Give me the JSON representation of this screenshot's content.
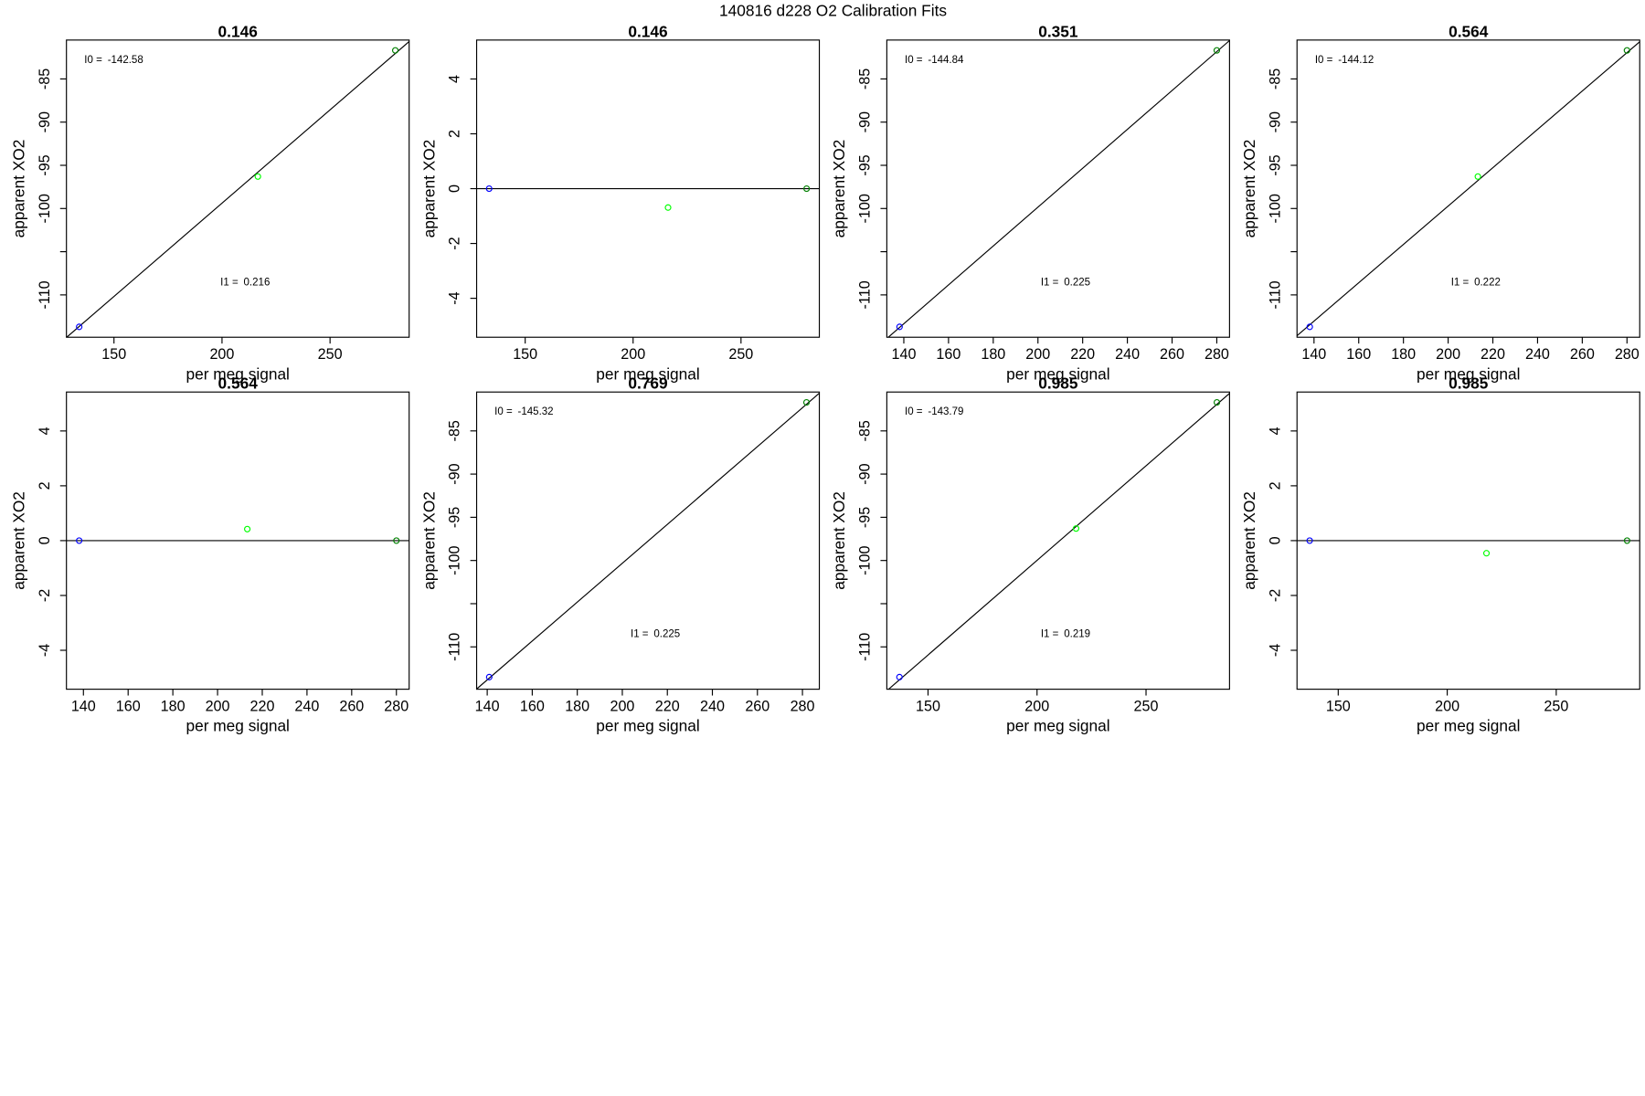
{
  "title": "140816   d228   O2 Calibration Fits",
  "chart_data": [
    {
      "type": "scatter",
      "title": "0.146",
      "xlabel": "per meg signal",
      "ylabel": "apparent XO2",
      "xlim": [
        128.0,
        286.6
      ],
      "ylim": [
        -114.9,
        -80.5
      ],
      "xticks": [
        150,
        200,
        250
      ],
      "yticks": [
        -110,
        {
          "value": -105,
          "label": null
        },
        -100,
        -95,
        -90,
        -85
      ],
      "x": [
        133.9,
        216.6,
        280.2
      ],
      "y": [
        -113.7,
        -96.3,
        -81.7
      ],
      "colors": [
        "#0000ff",
        "#00ff00",
        "#008000"
      ],
      "intercept": {
        "label": "I0 =",
        "value": -142.58
      },
      "slope": {
        "label": "I1 =",
        "value": 0.216
      }
    },
    {
      "type": "scatter",
      "title": "0.146",
      "xlabel": "per meg signal",
      "ylabel": "apparent XO2",
      "xlim": [
        127.5,
        286.3
      ],
      "ylim": [
        -5.42,
        5.42
      ],
      "xticks": [
        150,
        200,
        250
      ],
      "yticks": [
        -4,
        -2,
        0,
        2,
        4
      ],
      "x": [
        133.3,
        216.2,
        280.4
      ],
      "y": [
        0,
        -0.69,
        0
      ],
      "colors": [
        "#0000ff",
        "#00ff00",
        "#008000"
      ],
      "hline": 0
    },
    {
      "type": "scatter",
      "title": "0.351",
      "xlabel": "per meg signal",
      "ylabel": "apparent XO2",
      "xlim": [
        132.4,
        285.7
      ],
      "ylim": [
        -114.9,
        -80.5
      ],
      "xticks": [
        140,
        160,
        180,
        200,
        220,
        240,
        260,
        280
      ],
      "yticks": [
        -110,
        {
          "value": -105,
          "label": null
        },
        -100,
        -95,
        -90,
        -85
      ],
      "x": [
        138.1,
        280.0
      ],
      "y": [
        -113.7,
        -81.7
      ],
      "colors": [
        "#0000ff",
        "#008000"
      ],
      "intercept": {
        "label": "I0 =",
        "value": -144.84
      },
      "slope": {
        "label": "I1 =",
        "value": 0.225
      }
    },
    {
      "type": "scatter",
      "title": "0.564",
      "xlabel": "per meg signal",
      "ylabel": "apparent XO2",
      "xlim": [
        132.4,
        285.7
      ],
      "ylim": [
        -114.9,
        -80.5
      ],
      "xticks": [
        140,
        160,
        180,
        200,
        220,
        240,
        260,
        280
      ],
      "yticks": [
        -110,
        {
          "value": -105,
          "label": null
        },
        -100,
        -95,
        -90,
        -85
      ],
      "x": [
        138.1,
        213.3,
        280.0
      ],
      "y": [
        -113.7,
        -96.3,
        -81.7
      ],
      "colors": [
        "#0000ff",
        "#00ff00",
        "#008000"
      ],
      "intercept": {
        "label": "I0 =",
        "value": -144.12
      },
      "slope": {
        "label": "I1 =",
        "value": 0.222
      }
    },
    {
      "type": "scatter",
      "title": "0.564",
      "xlabel": "per meg signal",
      "ylabel": "apparent XO2",
      "xlim": [
        132.4,
        285.7
      ],
      "ylim": [
        -5.42,
        5.42
      ],
      "xticks": [
        140,
        160,
        180,
        200,
        220,
        240,
        260,
        280
      ],
      "yticks": [
        -4,
        -2,
        0,
        2,
        4
      ],
      "x": [
        138.1,
        213.3,
        280.0
      ],
      "y": [
        0,
        0.42,
        0
      ],
      "colors": [
        "#0000ff",
        "#00ff00",
        "#008000"
      ],
      "hline": 0
    },
    {
      "type": "scatter",
      "title": "0.769",
      "xlabel": "per meg signal",
      "ylabel": "apparent XO2",
      "xlim": [
        135.3,
        287.5
      ],
      "ylim": [
        -114.9,
        -80.5
      ],
      "xticks": [
        140,
        160,
        180,
        200,
        220,
        240,
        260,
        280
      ],
      "yticks": [
        -110,
        {
          "value": -105,
          "label": null
        },
        -100,
        -95,
        -90,
        -85
      ],
      "x": [
        140.9,
        281.8
      ],
      "y": [
        -113.5,
        -81.7
      ],
      "colors": [
        "#0000ff",
        "#008000"
      ],
      "intercept": {
        "label": "I0 =",
        "value": -145.32
      },
      "slope": {
        "label": "I1 =",
        "value": 0.225
      }
    },
    {
      "type": "scatter",
      "title": "0.985",
      "xlabel": "per meg signal",
      "ylabel": "apparent XO2",
      "xlim": [
        131.1,
        288.3
      ],
      "ylim": [
        -114.9,
        -80.5
      ],
      "xticks": [
        150,
        200,
        250
      ],
      "yticks": [
        -110,
        {
          "value": -105,
          "label": null
        },
        -100,
        -95,
        -90,
        -85
      ],
      "x": [
        136.9,
        217.9,
        282.5
      ],
      "y": [
        -113.5,
        -96.3,
        -81.7
      ],
      "colors": [
        "#0000ff",
        "#00ff00",
        "#008000"
      ],
      "intercept": {
        "label": "I0 =",
        "value": -143.79
      },
      "slope": {
        "label": "I1 =",
        "value": 0.219
      }
    },
    {
      "type": "scatter",
      "title": "0.985",
      "xlabel": "per meg signal",
      "ylabel": "apparent XO2",
      "xlim": [
        131.1,
        288.3
      ],
      "ylim": [
        -5.42,
        5.42
      ],
      "xticks": [
        150,
        200,
        250
      ],
      "yticks": [
        -4,
        -2,
        0,
        2,
        4
      ],
      "x": [
        136.9,
        218.0,
        282.5
      ],
      "y": [
        0,
        -0.46,
        0
      ],
      "colors": [
        "#0000ff",
        "#00ff00",
        "#008000"
      ],
      "hline": 0
    }
  ]
}
